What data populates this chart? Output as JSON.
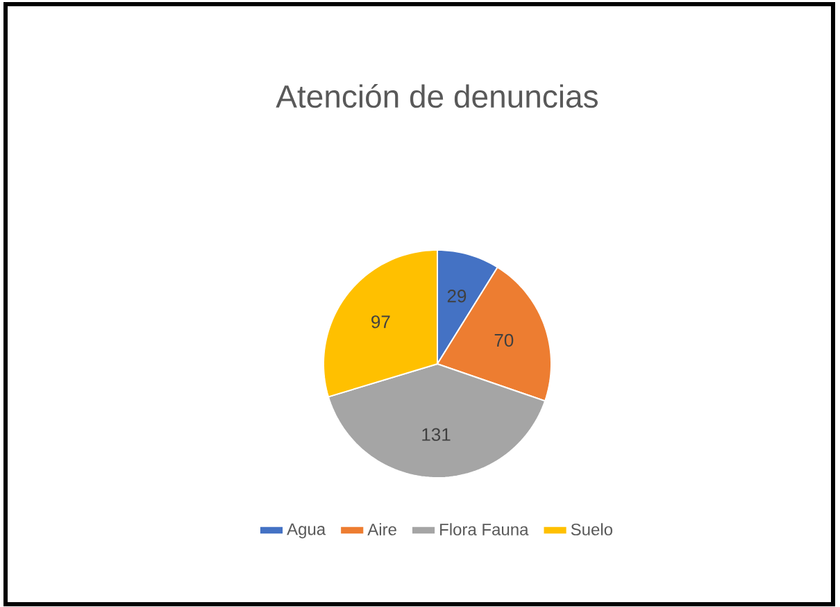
{
  "chart_data": {
    "type": "pie",
    "title": "Atención de denuncias",
    "categories": [
      "Agua",
      "Aire",
      "Flora Fauna",
      "Suelo"
    ],
    "values": [
      29,
      70,
      131,
      97
    ],
    "colors": [
      "#4472c4",
      "#ed7d31",
      "#a5a5a5",
      "#ffc000"
    ],
    "data_labels": true,
    "legend": "bottom"
  }
}
